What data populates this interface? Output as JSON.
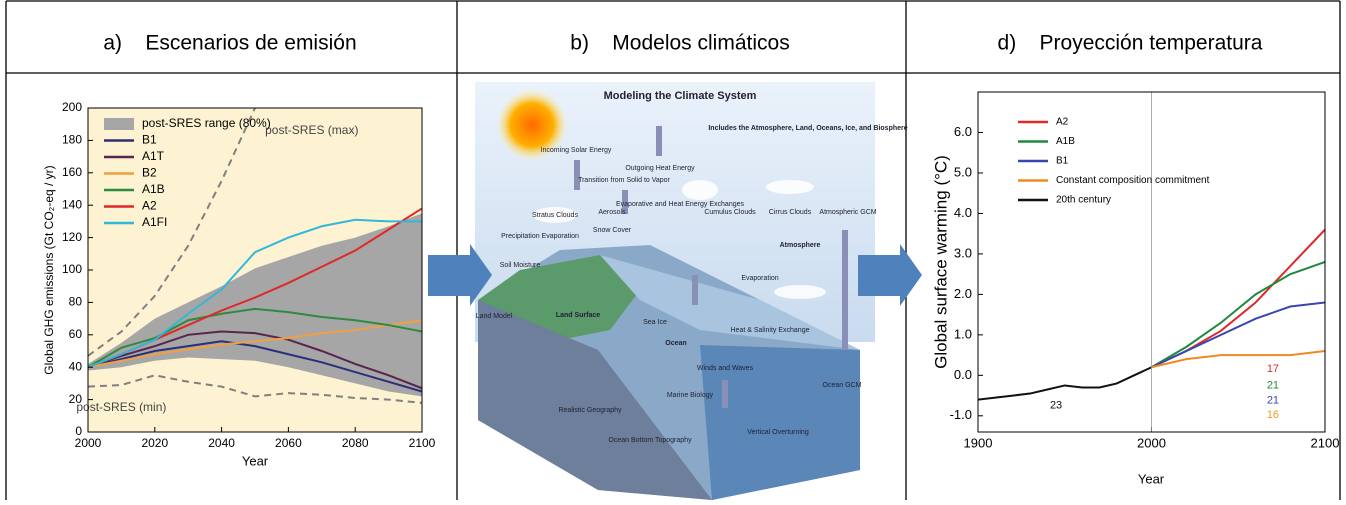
{
  "headers": [
    "a)    Escenarios de emisión",
    "b)    Modelos climáticos",
    "d)    Proyección temperatura"
  ],
  "chart_data": [
    {
      "type": "line",
      "ylabel": "Global GHG emissions (Gt CO₂-eq / yr)",
      "xlabel": "Year",
      "background": "#fdf3d2",
      "x": [
        2000,
        2010,
        2020,
        2030,
        2040,
        2050,
        2060,
        2070,
        2080,
        2090,
        2100
      ],
      "xlim": [
        2000,
        2100
      ],
      "xticks": [
        2000,
        2020,
        2040,
        2060,
        2080,
        2100
      ],
      "ylim": [
        0,
        200
      ],
      "yticks": [
        0,
        20,
        40,
        60,
        80,
        100,
        120,
        140,
        160,
        180,
        200
      ],
      "series": [
        {
          "name": "post-SRES range (80%)",
          "color": "#a6a6a6",
          "low": [
            38,
            40,
            44,
            46,
            45,
            44,
            40,
            35,
            30,
            25,
            22
          ],
          "high": [
            42,
            55,
            70,
            80,
            90,
            101,
            108,
            115,
            120,
            127,
            135
          ]
        },
        {
          "name": "B1",
          "color": "#2b2f7a",
          "values": [
            40,
            45,
            50,
            53,
            56,
            53,
            48,
            43,
            37,
            31,
            25
          ]
        },
        {
          "name": "A1T",
          "color": "#5a2450",
          "values": [
            40,
            47,
            53,
            60,
            62,
            61,
            57,
            50,
            42,
            35,
            27
          ]
        },
        {
          "name": "B2",
          "color": "#f0a040",
          "values": [
            40,
            44,
            48,
            51,
            54,
            56,
            58,
            61,
            63,
            66,
            69
          ]
        },
        {
          "name": "A1B",
          "color": "#2e8b3e",
          "values": [
            40,
            52,
            58,
            69,
            73,
            76,
            74,
            71,
            69,
            66,
            62
          ]
        },
        {
          "name": "A2",
          "color": "#e02828",
          "values": [
            40,
            48,
            57,
            66,
            75,
            83,
            92,
            102,
            112,
            125,
            138
          ]
        },
        {
          "name": "A1FI",
          "color": "#30b8d8",
          "values": [
            40,
            48,
            57,
            73,
            88,
            111,
            120,
            127,
            131,
            130,
            130
          ]
        }
      ],
      "dashed_series": [
        {
          "label": "post-SRES (max)",
          "color": "#808080",
          "values": [
            47,
            62,
            84,
            115,
            155,
            200,
            null,
            null,
            null,
            null,
            null
          ]
        },
        {
          "label": "post-SRES (min)",
          "color": "#808080",
          "values": [
            28,
            29,
            35,
            31,
            28,
            22,
            24,
            23,
            21,
            20,
            18
          ]
        }
      ]
    },
    {
      "type": "line",
      "ylabel": "Global surface warming (°C)",
      "xlabel": "Year",
      "xlim": [
        1900,
        2100
      ],
      "xticks": [
        1900,
        2000,
        2100
      ],
      "ylim": [
        -1.4,
        7.0
      ],
      "yticks": [
        {
          "value": -1,
          "label": "-1.0"
        },
        {
          "value": 0,
          "label": "0.0"
        },
        {
          "value": 1,
          "label": "1.0"
        },
        {
          "value": 2,
          "label": "2.0"
        },
        {
          "value": 3,
          "label": "3.0"
        },
        {
          "value": 4,
          "label": "4.0"
        },
        {
          "value": 5,
          "label": "5.0"
        },
        {
          "value": 6,
          "label": "6.0"
        }
      ],
      "series": [
        {
          "name": "A2",
          "color": "#e02828",
          "x": [
            2000,
            2020,
            2040,
            2060,
            2080,
            2100
          ],
          "values": [
            0.2,
            0.6,
            1.1,
            1.8,
            2.7,
            3.6
          ]
        },
        {
          "name": "A1B",
          "color": "#1f8a3c",
          "x": [
            2000,
            2020,
            2040,
            2060,
            2080,
            2100
          ],
          "values": [
            0.2,
            0.7,
            1.3,
            2.0,
            2.5,
            2.8
          ]
        },
        {
          "name": "B1",
          "color": "#3a46b0",
          "x": [
            2000,
            2020,
            2040,
            2060,
            2080,
            2100
          ],
          "values": [
            0.2,
            0.6,
            1.0,
            1.4,
            1.7,
            1.8
          ]
        },
        {
          "name": "Constant composition commitment",
          "color": "#f08a20",
          "x": [
            2000,
            2020,
            2040,
            2060,
            2080,
            2100
          ],
          "values": [
            0.2,
            0.4,
            0.5,
            0.5,
            0.5,
            0.6
          ]
        },
        {
          "name": "20th century",
          "color": "#111111",
          "x": [
            1900,
            1910,
            1920,
            1930,
            1940,
            1950,
            1960,
            1970,
            1980,
            1990,
            2000
          ],
          "values": [
            -0.6,
            -0.55,
            -0.5,
            -0.45,
            -0.35,
            -0.25,
            -0.3,
            -0.3,
            -0.2,
            0.0,
            0.2
          ]
        }
      ],
      "annotations": [
        {
          "text": "23",
          "color": "#111111"
        },
        {
          "text": "17",
          "color": "#e02828"
        },
        {
          "text": "21",
          "color": "#1f8a3c"
        },
        {
          "text": "21",
          "color": "#3a46b0"
        },
        {
          "text": "16",
          "color": "#f0a020"
        }
      ]
    }
  ],
  "diagram": {
    "title": "Modeling the Climate System",
    "labels": [
      "Incoming Solar Energy",
      "Outgoing Heat Energy",
      "Includes the Atmosphere, Land, Oceans, Ice, and Biosphere",
      "Transition from Solid to Vapor",
      "Evaporative and Heat Energy Exchanges",
      "Stratus Clouds",
      "Aerosols",
      "Cumulus Clouds",
      "Cirrus Clouds",
      "Atmospheric GCM",
      "Precipitation Evaporation",
      "Snow Cover",
      "Atmosphere",
      "Soil Moisture",
      "Land Surface",
      "Sea Ice",
      "Evaporation",
      "Land Model",
      "Ocean",
      "Heat & Salinity Exchange",
      "Winds and Waves",
      "Marine Biology",
      "Realistic Geography",
      "Ocean Bottom Topography",
      "Vertical Overturning",
      "Ocean GCM"
    ]
  }
}
